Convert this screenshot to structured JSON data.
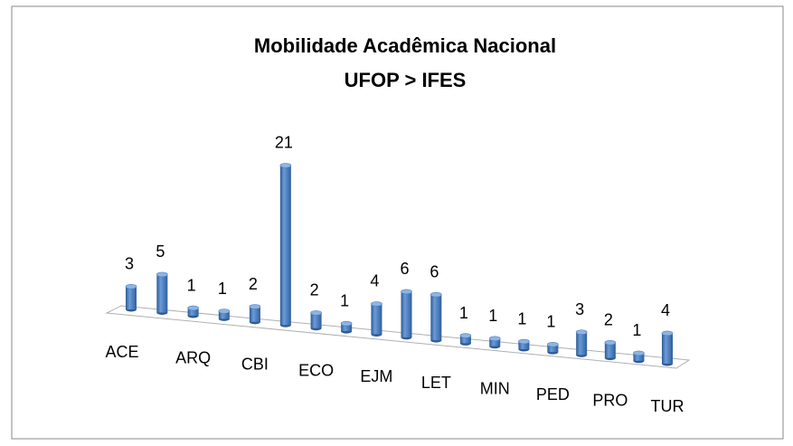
{
  "chart_data": {
    "type": "bar",
    "title": "Mobilidade Acadêmica Nacional",
    "subtitle": "UFOP > IFES",
    "categories": [
      "ACE",
      null,
      "ARQ",
      null,
      "CBI",
      null,
      "ECO",
      null,
      "EJM",
      null,
      "LET",
      null,
      "MIN",
      null,
      "PED",
      null,
      "PRO",
      null,
      "TUR"
    ],
    "values": [
      3,
      5,
      1,
      1,
      2,
      21,
      2,
      1,
      4,
      6,
      6,
      1,
      1,
      1,
      1,
      3,
      2,
      1,
      4
    ],
    "color": "#4f81bd"
  }
}
